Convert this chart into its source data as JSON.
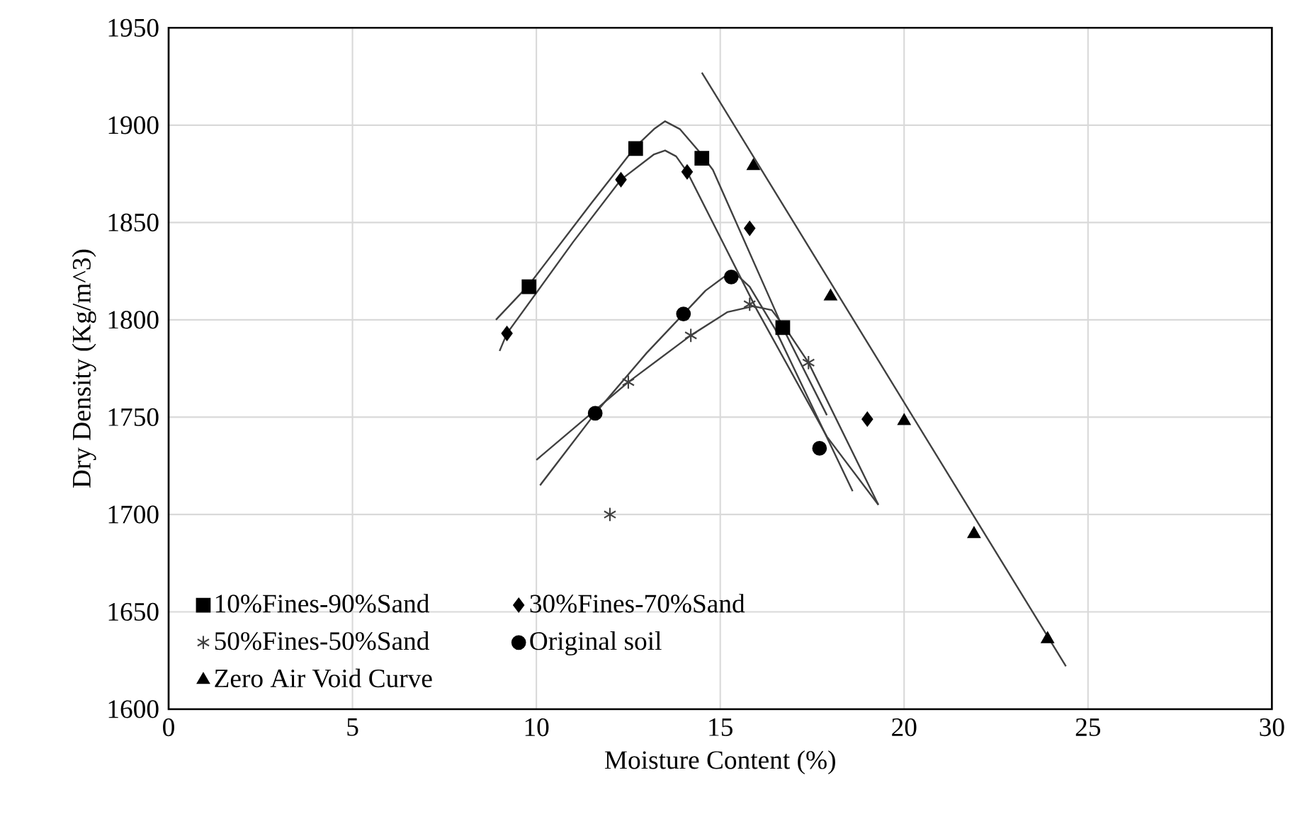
{
  "chart_data": {
    "type": "scatter",
    "xlabel": "Moisture  Content (%)",
    "ylabel": "Dry Density  (Kg/m^3)",
    "xlim": [
      0,
      30
    ],
    "xticks": [
      0,
      5,
      10,
      15,
      20,
      25,
      30
    ],
    "ylim": [
      1600,
      1950
    ],
    "yticks": [
      1600,
      1650,
      1700,
      1750,
      1800,
      1850,
      1900,
      1950
    ],
    "grid": true,
    "legend": "bottom left",
    "series": [
      {
        "name": "10%Fines-90%Sand",
        "marker": "square",
        "color": "#000000",
        "x": [
          9.8,
          12.7,
          14.5,
          16.7
        ],
        "values": [
          1817,
          1888,
          1883,
          1796
        ]
      },
      {
        "name": "30%Fines-70%Sand",
        "marker": "diamond",
        "color": "#000000",
        "x": [
          9.2,
          12.3,
          14.1,
          15.8,
          19.0
        ],
        "values": [
          1793,
          1872,
          1876,
          1847,
          1749
        ]
      },
      {
        "name": "50%Fines-50%Sand",
        "marker": "cross",
        "color": "#404040",
        "x": [
          12.0,
          12.5,
          14.2,
          15.8,
          17.4
        ],
        "values": [
          1700,
          1768,
          1792,
          1808,
          1778
        ]
      },
      {
        "name": "Original soil",
        "marker": "circle",
        "color": "#000000",
        "x": [
          11.6,
          14.0,
          15.3,
          17.7
        ],
        "values": [
          1752,
          1803,
          1822,
          1734
        ]
      },
      {
        "name": "Zero Air Void Curve",
        "marker": "triangle",
        "color": "#000000",
        "x": [
          15.9,
          18.0,
          20.0,
          21.9,
          23.9
        ],
        "values": [
          1879,
          1812,
          1748,
          1690,
          1636
        ]
      },
      {
        "type": "line",
        "marker": "none",
        "color": "#404040",
        "x": [
          8.9,
          9.8,
          11.5,
          12.7,
          13.2,
          13.5,
          13.9,
          14.4,
          14.8,
          16.7,
          17.9
        ],
        "values": [
          1800,
          1818,
          1860,
          1889,
          1898,
          1902,
          1898,
          1887,
          1877,
          1796,
          1751
        ]
      },
      {
        "type": "line",
        "marker": "none",
        "color": "#404040",
        "x": [
          9.0,
          9.2,
          11.0,
          12.3,
          13.2,
          13.5,
          13.8,
          14.1,
          16.0,
          17.9,
          19.3
        ],
        "values": [
          1784,
          1793,
          1840,
          1872,
          1885,
          1887,
          1884,
          1876,
          1805,
          1740,
          1705
        ]
      },
      {
        "type": "line",
        "marker": "none",
        "color": "#404040",
        "x": [
          10.1,
          11.6,
          13.0,
          14.0,
          14.6,
          15.1,
          15.4,
          15.8,
          16.5,
          18.6
        ],
        "values": [
          1715,
          1752,
          1783,
          1803,
          1815,
          1822,
          1824,
          1817,
          1795,
          1712
        ]
      },
      {
        "type": "line",
        "marker": "none",
        "color": "#404040",
        "x": [
          10.0,
          11.5,
          12.5,
          14.2,
          15.2,
          15.9,
          16.4,
          16.8,
          17.4,
          19.3
        ],
        "values": [
          1728,
          1752,
          1768,
          1792,
          1804,
          1807,
          1805,
          1795,
          1778,
          1705
        ]
      },
      {
        "type": "line",
        "marker": "none",
        "color": "#404040",
        "x": [
          14.5,
          24.4
        ],
        "values": [
          1927,
          1622
        ]
      }
    ]
  }
}
